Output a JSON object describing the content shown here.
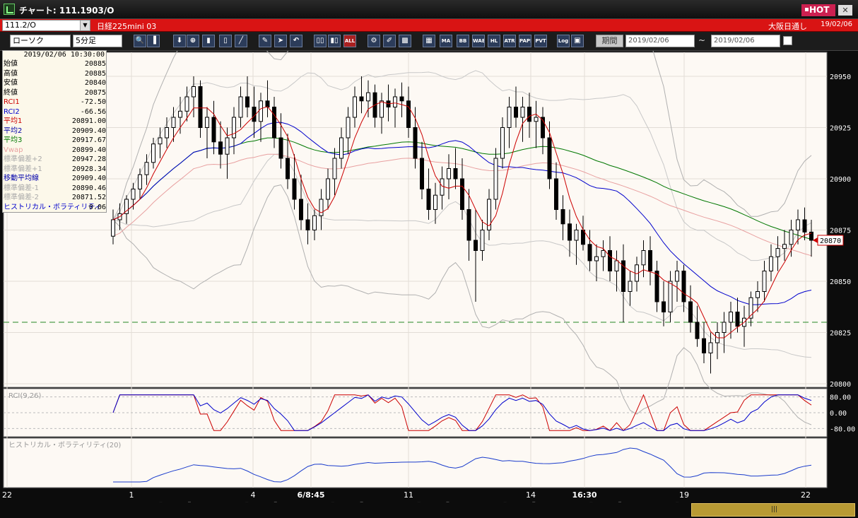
{
  "window": {
    "title": "チャート: 111.1903/O",
    "hot_label": "HOT",
    "close_icon": "close-icon"
  },
  "infobar": {
    "symbol": "111.2/O",
    "instrument": "日経225mini 03",
    "session": "大阪日通し",
    "date": "19/02/06"
  },
  "toolbar": {
    "chart_type": "ローソク",
    "interval": "5分足",
    "buttons": [
      "zoom-icon",
      "split-icon",
      "down-icon",
      "magnify-icon",
      "bar-icon",
      "candle-icon",
      "line-icon",
      "pen-icon",
      "cursor-icon",
      "undo-icon",
      "bar-chart-icon",
      "candle-chart-icon",
      "ALL",
      "settings-icon",
      "brush-icon",
      "palette-icon",
      "grid-icon",
      "MA",
      "BB",
      "WAE",
      "HL",
      "ATR",
      "PAPS",
      "PVT",
      "Log",
      "window-icon"
    ],
    "period_label": "期間",
    "date_from": "2019/02/06",
    "date_to": "2019/02/06",
    "range_sep": "~"
  },
  "data_panel": {
    "timestamp": "2019/02/06  10:30:00",
    "rows": [
      {
        "label": "始値",
        "value": "20885",
        "color": "#000000"
      },
      {
        "label": "高値",
        "value": "20885",
        "color": "#000000"
      },
      {
        "label": "安値",
        "value": "20840",
        "color": "#000000"
      },
      {
        "label": "終値",
        "value": "20875",
        "color": "#000000"
      },
      {
        "label": "RCI1",
        "value": "-72.50",
        "color": "#cc0000"
      },
      {
        "label": "RCI2",
        "value": "-66.56",
        "color": "#0000cc"
      },
      {
        "label": "平均1",
        "value": "20891.00",
        "color": "#cc0000"
      },
      {
        "label": "平均2",
        "value": "20909.40",
        "color": "#0000aa"
      },
      {
        "label": "平均3",
        "value": "20917.67",
        "color": "#007700"
      },
      {
        "label": "Vwap",
        "value": "20899.40",
        "color": "#e8a0a0"
      },
      {
        "label": "標準偏差+2",
        "value": "20947.28",
        "color": "#aaaaaa"
      },
      {
        "label": "標準偏差+1",
        "value": "20928.34",
        "color": "#aaaaaa"
      },
      {
        "label": "移動平均線",
        "value": "20909.40",
        "color": "#0000aa"
      },
      {
        "label": "標準偏差-1",
        "value": "20890.46",
        "color": "#aaaaaa"
      },
      {
        "label": "標準偏差-2",
        "value": "20871.52",
        "color": "#aaaaaa"
      },
      {
        "label": "ヒストリカル・ボラティリティ",
        "value": "0.06",
        "color": "#0000cc"
      }
    ]
  },
  "chart_data": {
    "type": "candlestick",
    "price_axis": {
      "min": 20800,
      "max": 20960,
      "ticks": [
        20950,
        20925,
        20900,
        20875,
        20850,
        20825,
        20800
      ]
    },
    "last_price": 20870,
    "hline": 20830,
    "x_tick_labels": [
      {
        "label": "22",
        "bold": false
      },
      {
        "label": "1",
        "bold": false
      },
      {
        "label": "4",
        "bold": false
      },
      {
        "label": "6/8:45",
        "bold": true
      },
      {
        "label": "11",
        "bold": false
      },
      {
        "label": "14",
        "bold": false
      },
      {
        "label": "16:30",
        "bold": true
      },
      {
        "label": "19",
        "bold": false
      },
      {
        "label": "22",
        "bold": false
      }
    ],
    "candles": [
      [
        20872,
        20885,
        20868,
        20880
      ],
      [
        20880,
        20888,
        20875,
        20883
      ],
      [
        20883,
        20892,
        20878,
        20890
      ],
      [
        20890,
        20898,
        20885,
        20895
      ],
      [
        20895,
        20905,
        20890,
        20902
      ],
      [
        20902,
        20912,
        20897,
        20908
      ],
      [
        20908,
        20920,
        20905,
        20917
      ],
      [
        20917,
        20925,
        20910,
        20920
      ],
      [
        20920,
        20930,
        20915,
        20925
      ],
      [
        20925,
        20935,
        20918,
        20930
      ],
      [
        20930,
        20940,
        20922,
        20933
      ],
      [
        20933,
        20945,
        20928,
        20940
      ],
      [
        20940,
        20950,
        20930,
        20945
      ],
      [
        20945,
        20948,
        20920,
        20925
      ],
      [
        20925,
        20935,
        20910,
        20930
      ],
      [
        20930,
        20938,
        20912,
        20918
      ],
      [
        20918,
        20928,
        20905,
        20912
      ],
      [
        20912,
        20925,
        20900,
        20920
      ],
      [
        20920,
        20935,
        20912,
        20930
      ],
      [
        20930,
        20945,
        20925,
        20940
      ],
      [
        20940,
        20950,
        20930,
        20935
      ],
      [
        20935,
        20945,
        20920,
        20928
      ],
      [
        20928,
        20942,
        20918,
        20938
      ],
      [
        20938,
        20948,
        20930,
        20935
      ],
      [
        20935,
        20940,
        20915,
        20920
      ],
      [
        20920,
        20932,
        20905,
        20910
      ],
      [
        20910,
        20922,
        20895,
        20900
      ],
      [
        20900,
        20912,
        20885,
        20890
      ],
      [
        20890,
        20902,
        20875,
        20880
      ],
      [
        20880,
        20888,
        20868,
        20875
      ],
      [
        20875,
        20885,
        20870,
        20882
      ],
      [
        20882,
        20895,
        20875,
        20890
      ],
      [
        20890,
        20905,
        20885,
        20900
      ],
      [
        20900,
        20915,
        20892,
        20910
      ],
      [
        20910,
        20925,
        20905,
        20920
      ],
      [
        20920,
        20935,
        20912,
        20930
      ],
      [
        20930,
        20945,
        20925,
        20940
      ],
      [
        20940,
        20950,
        20932,
        20938
      ],
      [
        20938,
        20948,
        20930,
        20942
      ],
      [
        20942,
        20946,
        20925,
        20930
      ],
      [
        20930,
        20942,
        20922,
        20938
      ],
      [
        20938,
        20946,
        20928,
        20935
      ],
      [
        20935,
        20944,
        20925,
        20940
      ],
      [
        20940,
        20947,
        20930,
        20938
      ],
      [
        20938,
        20945,
        20920,
        20925
      ],
      [
        20925,
        20935,
        20905,
        20910
      ],
      [
        20910,
        20918,
        20890,
        20895
      ],
      [
        20895,
        20905,
        20880,
        20885
      ],
      [
        20885,
        20898,
        20878,
        20892
      ],
      [
        20892,
        20906,
        20885,
        20900
      ],
      [
        20900,
        20912,
        20890,
        20905
      ],
      [
        20905,
        20915,
        20895,
        20900
      ],
      [
        20900,
        20910,
        20880,
        20885
      ],
      [
        20885,
        20895,
        20860,
        20870
      ],
      [
        20870,
        20885,
        20840,
        20865
      ],
      [
        20865,
        20880,
        20860,
        20875
      ],
      [
        20875,
        20895,
        20870,
        20890
      ],
      [
        20890,
        20915,
        20885,
        20910
      ],
      [
        20910,
        20930,
        20905,
        20925
      ],
      [
        20925,
        20940,
        20915,
        20935
      ],
      [
        20935,
        20945,
        20925,
        20930
      ],
      [
        20930,
        20940,
        20918,
        20935
      ],
      [
        20935,
        20942,
        20920,
        20928
      ],
      [
        20928,
        20938,
        20915,
        20930
      ],
      [
        20930,
        20935,
        20912,
        20920
      ],
      [
        20920,
        20928,
        20895,
        20900
      ],
      [
        20900,
        20908,
        20880,
        20885
      ],
      [
        20885,
        20892,
        20870,
        20878
      ],
      [
        20878,
        20885,
        20862,
        20870
      ],
      [
        20870,
        20878,
        20858,
        20875
      ],
      [
        20875,
        20882,
        20865,
        20868
      ],
      [
        20868,
        20875,
        20855,
        20860
      ],
      [
        20860,
        20868,
        20850,
        20862
      ],
      [
        20862,
        20870,
        20855,
        20865
      ],
      [
        20865,
        20872,
        20850,
        20855
      ],
      [
        20855,
        20865,
        20845,
        20860
      ],
      [
        20860,
        20868,
        20830,
        20845
      ],
      [
        20845,
        20855,
        20838,
        20850
      ],
      [
        20850,
        20862,
        20845,
        20858
      ],
      [
        20858,
        20870,
        20852,
        20865
      ],
      [
        20865,
        20872,
        20848,
        20855
      ],
      [
        20855,
        20860,
        20835,
        20840
      ],
      [
        20840,
        20850,
        20828,
        20835
      ],
      [
        20835,
        20855,
        20830,
        20850
      ],
      [
        20850,
        20860,
        20840,
        20855
      ],
      [
        20855,
        20858,
        20835,
        20840
      ],
      [
        20840,
        20848,
        20825,
        20830
      ],
      [
        20830,
        20838,
        20818,
        20822
      ],
      [
        20822,
        20830,
        20810,
        20815
      ],
      [
        20815,
        20825,
        20805,
        20820
      ],
      [
        20820,
        20830,
        20812,
        20825
      ],
      [
        20825,
        20835,
        20815,
        20830
      ],
      [
        20830,
        20840,
        20822,
        20835
      ],
      [
        20835,
        20842,
        20825,
        20828
      ],
      [
        20828,
        20838,
        20818,
        20832
      ],
      [
        20832,
        20845,
        20828,
        20842
      ],
      [
        20842,
        20850,
        20835,
        20845
      ],
      [
        20845,
        20860,
        20840,
        20855
      ],
      [
        20855,
        20868,
        20850,
        20862
      ],
      [
        20862,
        20872,
        20855,
        20866
      ],
      [
        20866,
        20875,
        20860,
        20868
      ],
      [
        20868,
        20880,
        20862,
        20875
      ],
      [
        20875,
        20885,
        20868,
        20880
      ],
      [
        20880,
        20886,
        20870,
        20874
      ],
      [
        20874,
        20880,
        20862,
        20870
      ]
    ],
    "series": [
      {
        "name": "平均1",
        "color": "#cc0000"
      },
      {
        "name": "平均2",
        "color": "#0000cc"
      },
      {
        "name": "平均3",
        "color": "#007700"
      },
      {
        "name": "Vwap",
        "color": "#e8a0a0"
      },
      {
        "name": "標準偏差",
        "color": "#aaaaaa"
      }
    ],
    "rci_panel": {
      "label": "RCI(9,26)",
      "ticks": [
        "80.00",
        "0.00",
        "-80.00"
      ]
    },
    "hv_panel": {
      "label": "ヒストリカル・ボラティリティ(20)"
    }
  }
}
